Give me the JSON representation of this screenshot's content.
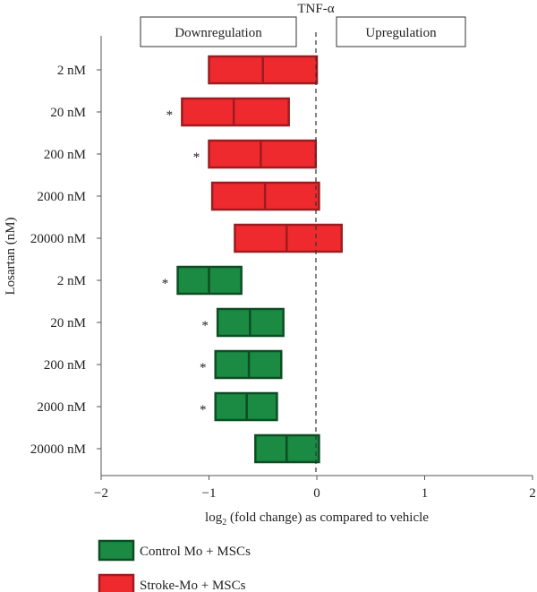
{
  "chart_data": {
    "type": "bar",
    "title": "TNF-α",
    "xlabel_pre": "log",
    "xlabel_sub": "2",
    "xlabel_post": " (fold change) as compared to vehicle",
    "ylabel": "Losartan (nM)",
    "xlim": [
      -2,
      2
    ],
    "xticks": [
      {
        "value": -2,
        "label": "−2"
      },
      {
        "value": -1,
        "label": "−1"
      },
      {
        "value": 0,
        "label": "0"
      },
      {
        "value": 1,
        "label": "1"
      },
      {
        "value": 2,
        "label": "2"
      }
    ],
    "header_boxes": {
      "left": "Downregulation",
      "right": "Upregulation"
    },
    "colors": {
      "stroke_fill": "#ee2a2e",
      "stroke_edge": "#9e1b1f",
      "control_fill": "#1b8a43",
      "control_edge": "#0d4d23"
    },
    "series": [
      {
        "name": "Stroke-Mo + MSCs",
        "key": "stroke"
      },
      {
        "name": "Control Mo + MSCs",
        "key": "control"
      }
    ],
    "rows": [
      {
        "label": "2 nM",
        "series": "stroke",
        "min": -1.0,
        "mean": -0.5,
        "max": 0.0,
        "significant": ""
      },
      {
        "label": "20 nM",
        "series": "stroke",
        "min": -1.25,
        "mean": -0.77,
        "max": -0.26,
        "significant": "*"
      },
      {
        "label": "200 nM",
        "series": "stroke",
        "min": -1.0,
        "mean": -0.52,
        "max": -0.01,
        "significant": "*"
      },
      {
        "label": "2000 nM",
        "series": "stroke",
        "min": -0.97,
        "mean": -0.48,
        "max": 0.02,
        "significant": ""
      },
      {
        "label": "20000 nM",
        "series": "stroke",
        "min": -0.76,
        "mean": -0.28,
        "max": 0.23,
        "significant": ""
      },
      {
        "label": "2 nM",
        "series": "control",
        "min": -1.29,
        "mean": -1.0,
        "max": -0.7,
        "significant": "*"
      },
      {
        "label": "20 nM",
        "series": "control",
        "min": -0.92,
        "mean": -0.62,
        "max": -0.31,
        "significant": "*"
      },
      {
        "label": "200 nM",
        "series": "control",
        "min": -0.94,
        "mean": -0.63,
        "max": -0.33,
        "significant": "*"
      },
      {
        "label": "2000 nM",
        "series": "control",
        "min": -0.94,
        "mean": -0.65,
        "max": -0.37,
        "significant": "*"
      },
      {
        "label": "20000 nM",
        "series": "control",
        "min": -0.57,
        "mean": -0.28,
        "max": 0.02,
        "significant": ""
      }
    ],
    "legend": [
      {
        "label": "Control Mo + MSCs",
        "series": "control"
      },
      {
        "label": "Stroke-Mo + MSCs",
        "series": "stroke"
      }
    ],
    "legend_placement": "bottom-left"
  }
}
